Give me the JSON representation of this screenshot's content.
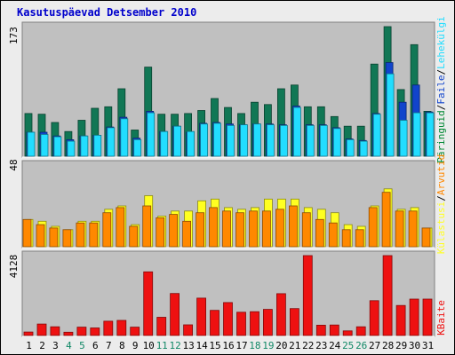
{
  "title": "Kasutuspäevad Detsember 2010",
  "colors": {
    "background": "#ececec",
    "panel": "#c0c0c0",
    "title": "#0000cc",
    "visits": "#117755",
    "pages": "#1144cc",
    "files": "#22ddff",
    "hits_legend": "#008833",
    "kbytes": "#ee1111",
    "visitors": "#ffff22",
    "visits_mid": "#ff8800",
    "weekend_label": "#118866",
    "weekday_label": "#000000"
  },
  "legend": {
    "top": [
      "Päringuid",
      "/",
      "Faile",
      "/",
      "Lehekülgi"
    ],
    "middle": [
      "Külastusi",
      "/",
      "Arvutid"
    ],
    "bottom": [
      "KBaite"
    ]
  },
  "chart_data": [
    {
      "type": "bar",
      "panel": "top",
      "ymax_label": "173",
      "ymax": 173,
      "x": [
        1,
        2,
        3,
        4,
        5,
        6,
        7,
        8,
        9,
        10,
        11,
        12,
        13,
        14,
        15,
        16,
        17,
        18,
        19,
        20,
        21,
        22,
        23,
        24,
        25,
        26,
        27,
        28,
        29,
        30,
        31
      ],
      "weekend_days": [
        4,
        5,
        11,
        12,
        18,
        19,
        25,
        26
      ],
      "series": [
        {
          "name": "Päringuid",
          "color": "#117755",
          "values": [
            57,
            56,
            45,
            33,
            48,
            64,
            66,
            90,
            35,
            119,
            56,
            56,
            57,
            61,
            77,
            65,
            57,
            72,
            69,
            90,
            95,
            66,
            66,
            53,
            40,
            40,
            123,
            173,
            89,
            149,
            60
          ]
        },
        {
          "name": "Faile",
          "color": "#1144cc",
          "values": [
            32,
            32,
            27,
            22,
            27,
            28,
            39,
            52,
            24,
            60,
            33,
            40,
            32,
            44,
            45,
            43,
            42,
            43,
            43,
            42,
            67,
            42,
            42,
            38,
            23,
            21,
            57,
            125,
            72,
            95,
            59
          ]
        },
        {
          "name": "Lehekülgi",
          "color": "#22ddff",
          "values": [
            32,
            29,
            26,
            20,
            27,
            28,
            38,
            50,
            22,
            58,
            33,
            40,
            33,
            43,
            44,
            41,
            42,
            43,
            42,
            41,
            65,
            41,
            41,
            37,
            22,
            20,
            56,
            110,
            48,
            58,
            58
          ]
        }
      ]
    },
    {
      "type": "bar",
      "panel": "middle",
      "ymax_label": "48",
      "ymax": 48,
      "x": [
        1,
        2,
        3,
        4,
        5,
        6,
        7,
        8,
        9,
        10,
        11,
        12,
        13,
        14,
        15,
        16,
        17,
        18,
        19,
        20,
        21,
        22,
        23,
        24,
        25,
        26,
        27,
        28,
        29,
        30,
        31
      ],
      "series": [
        {
          "name": "Arvutid",
          "color": "#ffff22",
          "values": [
            16,
            15,
            12,
            10,
            15,
            15,
            22,
            24,
            13,
            30,
            18,
            21,
            21,
            27,
            28,
            23,
            22,
            23,
            28,
            28,
            28,
            23,
            22,
            20,
            13,
            12,
            24,
            34,
            22,
            23,
            11
          ]
        },
        {
          "name": "Külastusi",
          "color": "#ff8800",
          "values": [
            16,
            13,
            11,
            10,
            14,
            14,
            20,
            23,
            12,
            24,
            17,
            19,
            15,
            20,
            23,
            21,
            20,
            21,
            21,
            22,
            24,
            20,
            16,
            14,
            10,
            10,
            23,
            32,
            21,
            21,
            11
          ]
        }
      ]
    },
    {
      "type": "bar",
      "panel": "bottom",
      "ymax_label": "4128",
      "ymax": 4128,
      "x": [
        1,
        2,
        3,
        4,
        5,
        6,
        7,
        8,
        9,
        10,
        11,
        12,
        13,
        14,
        15,
        16,
        17,
        18,
        19,
        20,
        21,
        22,
        23,
        24,
        25,
        26,
        27,
        28,
        29,
        30,
        31
      ],
      "series": [
        {
          "name": "KBaite",
          "color": "#ee1111",
          "values": [
            180,
            590,
            450,
            170,
            430,
            390,
            740,
            780,
            430,
            3290,
            940,
            2170,
            550,
            1930,
            1300,
            1700,
            1200,
            1230,
            1350,
            2160,
            1390,
            4128,
            530,
            540,
            240,
            450,
            1800,
            4128,
            1550,
            1880,
            1880
          ]
        }
      ]
    }
  ]
}
